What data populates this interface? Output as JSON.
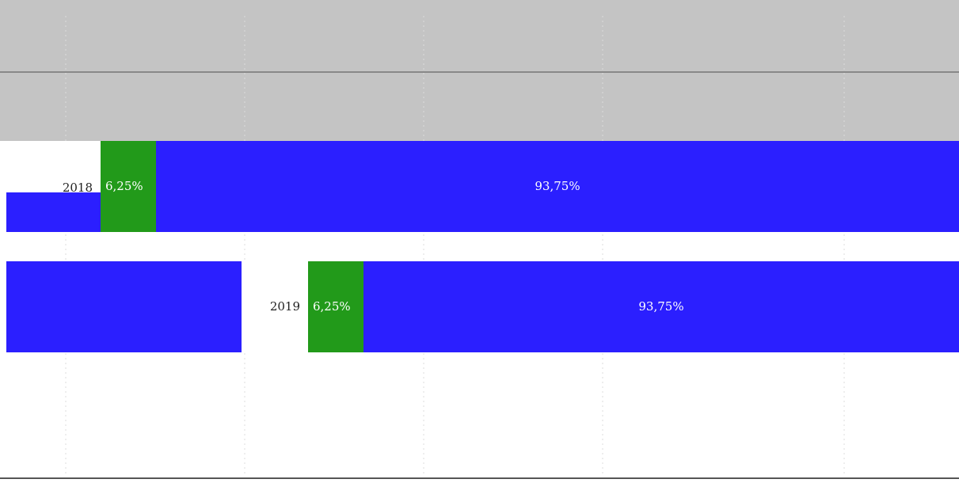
{
  "chart_data": {
    "type": "bar",
    "orientation": "horizontal",
    "stacked": true,
    "categories": [
      "2018",
      "2019"
    ],
    "series": [
      {
        "color": "#229a1a",
        "values": [
          6.25,
          6.25
        ],
        "value_labels": [
          "6,25%",
          "6,25%"
        ]
      },
      {
        "color": "#2b1fff",
        "values": [
          93.75,
          93.75
        ],
        "value_labels": [
          "93,75%",
          "93,75%"
        ]
      }
    ],
    "xlim": [
      0,
      100
    ]
  }
}
